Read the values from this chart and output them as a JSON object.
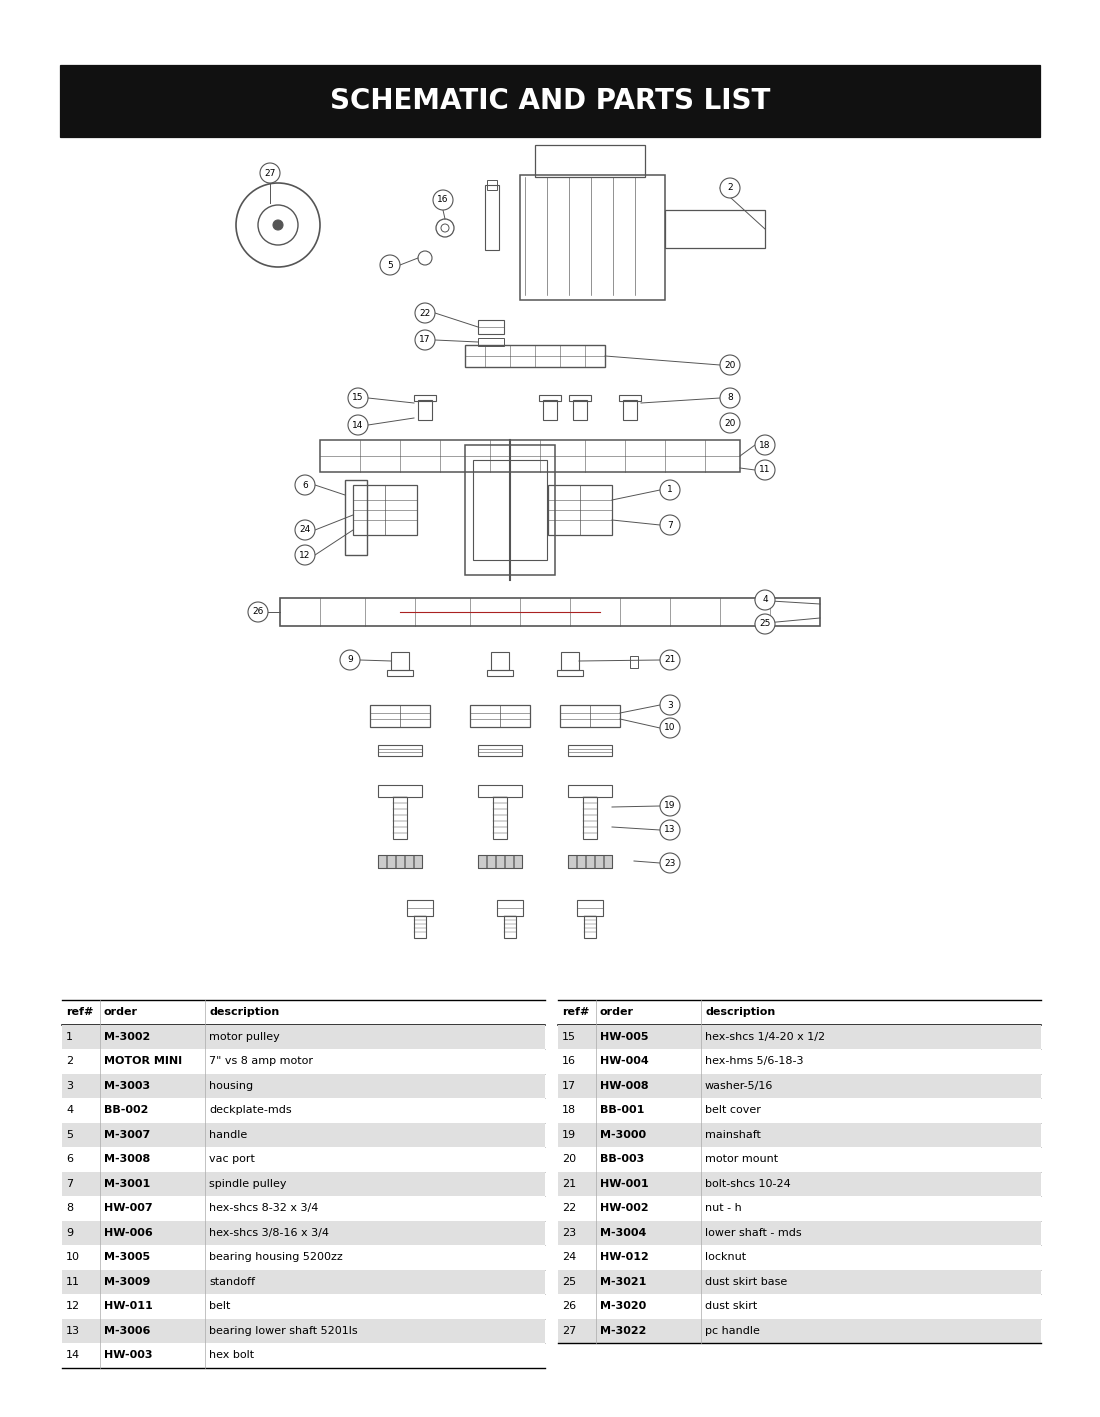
{
  "title": "SCHEMATIC AND PARTS LIST",
  "title_bg": "#111111",
  "title_color": "#ffffff",
  "title_fontsize": 20,
  "page_bg": "#ffffff",
  "parts": [
    {
      "ref": "1",
      "order": "M-3002",
      "desc": "motor pulley"
    },
    {
      "ref": "2",
      "order": "MOTOR MINI",
      "desc": "7\" vs 8 amp motor"
    },
    {
      "ref": "3",
      "order": "M-3003",
      "desc": "housing"
    },
    {
      "ref": "4",
      "order": "BB-002",
      "desc": "deckplate-mds"
    },
    {
      "ref": "5",
      "order": "M-3007",
      "desc": "handle"
    },
    {
      "ref": "6",
      "order": "M-3008",
      "desc": "vac port"
    },
    {
      "ref": "7",
      "order": "M-3001",
      "desc": "spindle pulley"
    },
    {
      "ref": "8",
      "order": "HW-007",
      "desc": "hex-shcs 8-32 x 3/4"
    },
    {
      "ref": "9",
      "order": "HW-006",
      "desc": "hex-shcs 3/8-16 x 3/4"
    },
    {
      "ref": "10",
      "order": "M-3005",
      "desc": "bearing housing 5200zz"
    },
    {
      "ref": "11",
      "order": "M-3009",
      "desc": "standoff"
    },
    {
      "ref": "12",
      "order": "HW-011",
      "desc": "belt"
    },
    {
      "ref": "13",
      "order": "M-3006",
      "desc": "bearing lower shaft 5201ls"
    },
    {
      "ref": "14",
      "order": "HW-003",
      "desc": "hex bolt"
    },
    {
      "ref": "15",
      "order": "HW-005",
      "desc": "hex-shcs 1/4-20 x 1/2"
    },
    {
      "ref": "16",
      "order": "HW-004",
      "desc": "hex-hms 5/6-18-3"
    },
    {
      "ref": "17",
      "order": "HW-008",
      "desc": "washer-5/16"
    },
    {
      "ref": "18",
      "order": "BB-001",
      "desc": "belt cover"
    },
    {
      "ref": "19",
      "order": "M-3000",
      "desc": "mainshaft"
    },
    {
      "ref": "20",
      "order": "BB-003",
      "desc": "motor mount"
    },
    {
      "ref": "21",
      "order": "HW-001",
      "desc": "bolt-shcs 10-24"
    },
    {
      "ref": "22",
      "order": "HW-002",
      "desc": "nut - h"
    },
    {
      "ref": "23",
      "order": "M-3004",
      "desc": "lower shaft - mds"
    },
    {
      "ref": "24",
      "order": "HW-012",
      "desc": "locknut"
    },
    {
      "ref": "25",
      "order": "M-3021",
      "desc": "dust skirt base"
    },
    {
      "ref": "26",
      "order": "M-3020",
      "desc": "dust skirt"
    },
    {
      "ref": "27",
      "order": "M-3022",
      "desc": "pc handle"
    }
  ],
  "table_row_even_color": "#e0e0e0",
  "table_row_odd_color": "#ffffff",
  "diagram_color": "#555555"
}
